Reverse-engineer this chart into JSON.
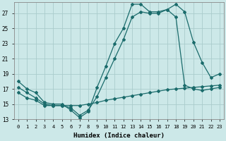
{
  "xlabel": "Humidex (Indice chaleur)",
  "background_color": "#cce8e8",
  "grid_color": "#aacccc",
  "line_color": "#1a6b6b",
  "xlim": [
    -0.5,
    23.5
  ],
  "ylim": [
    13,
    28.5
  ],
  "yticks": [
    13,
    15,
    17,
    19,
    21,
    23,
    25,
    27
  ],
  "xticks": [
    0,
    1,
    2,
    3,
    4,
    5,
    6,
    7,
    8,
    9,
    10,
    11,
    12,
    13,
    14,
    15,
    16,
    17,
    18,
    19,
    20,
    21,
    22,
    23
  ],
  "line1_x": [
    0,
    1,
    2,
    3,
    4,
    5,
    6,
    7,
    8,
    9,
    10,
    11,
    12,
    13,
    14,
    15,
    16,
    17,
    18,
    19,
    20,
    21,
    22,
    23
  ],
  "line1_y": [
    18.0,
    17.0,
    16.5,
    15.2,
    15.0,
    15.0,
    14.2,
    13.2,
    14.0,
    17.2,
    20.0,
    23.0,
    25.0,
    28.2,
    28.2,
    27.2,
    27.2,
    27.5,
    28.2,
    27.2,
    23.2,
    20.5,
    18.5,
    19.0
  ],
  "line2_x": [
    0,
    1,
    2,
    3,
    4,
    5,
    6,
    7,
    8,
    9,
    10,
    11,
    12,
    13,
    14,
    15,
    16,
    17,
    18,
    19,
    20,
    21,
    22,
    23
  ],
  "line2_y": [
    17.2,
    16.5,
    15.8,
    15.0,
    14.8,
    14.8,
    14.5,
    13.5,
    14.2,
    16.0,
    18.5,
    21.0,
    23.5,
    26.5,
    27.2,
    27.0,
    27.0,
    27.5,
    26.5,
    17.5,
    17.0,
    16.8,
    17.0,
    17.2
  ],
  "line3_x": [
    0,
    1,
    2,
    3,
    4,
    5,
    6,
    7,
    8,
    9,
    10,
    11,
    12,
    13,
    14,
    15,
    16,
    17,
    18,
    19,
    20,
    21,
    22,
    23
  ],
  "line3_y": [
    16.5,
    15.8,
    15.5,
    14.8,
    14.8,
    14.8,
    14.8,
    14.8,
    15.0,
    15.2,
    15.5,
    15.7,
    15.9,
    16.1,
    16.3,
    16.5,
    16.7,
    16.9,
    17.0,
    17.1,
    17.2,
    17.3,
    17.4,
    17.5
  ]
}
